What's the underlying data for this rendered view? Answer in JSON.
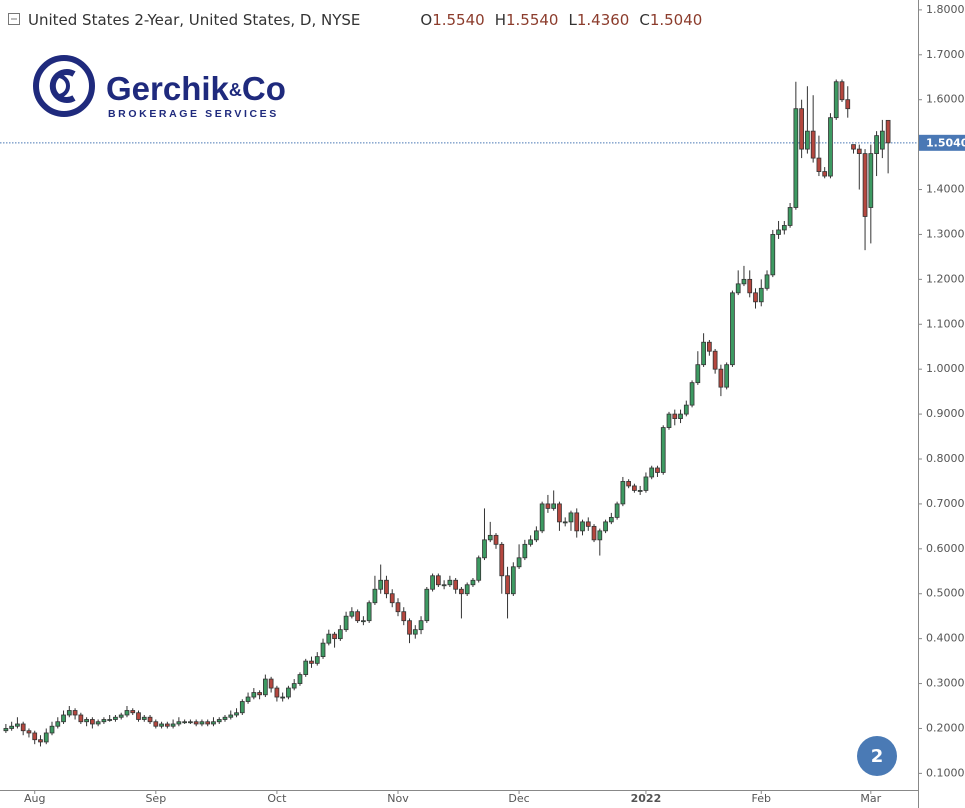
{
  "chart_data": {
    "type": "candlestick",
    "title": "United States 2-Year, United States, D, NYSE",
    "ohlc": [
      {
        "prefix": "O",
        "value": 1.554,
        "label": "1.5540"
      },
      {
        "prefix": "H",
        "value": 1.554,
        "label": "1.5540"
      },
      {
        "prefix": "L",
        "value": 1.436,
        "label": "1.4360"
      },
      {
        "prefix": "C",
        "value": 1.504,
        "label": "1.5040"
      }
    ],
    "categories": [
      null,
      null,
      null,
      null,
      null,
      "Aug",
      null,
      null,
      null,
      null,
      null,
      null,
      null,
      null,
      null,
      null,
      null,
      null,
      null,
      null,
      null,
      null,
      null,
      null,
      null,
      null,
      "Sep",
      null,
      null,
      null,
      null,
      null,
      null,
      null,
      null,
      null,
      null,
      null,
      null,
      null,
      null,
      null,
      null,
      null,
      null,
      null,
      null,
      "Oct",
      null,
      null,
      null,
      null,
      null,
      null,
      null,
      null,
      null,
      null,
      null,
      null,
      null,
      null,
      null,
      null,
      null,
      null,
      null,
      null,
      "Nov",
      null,
      null,
      null,
      null,
      null,
      null,
      null,
      null,
      null,
      null,
      null,
      null,
      null,
      null,
      null,
      null,
      null,
      null,
      null,
      null,
      "Dec",
      null,
      null,
      null,
      null,
      null,
      null,
      null,
      null,
      null,
      null,
      null,
      null,
      null,
      null,
      null,
      null,
      null,
      null,
      null,
      null,
      null,
      "2022",
      null,
      null,
      null,
      null,
      null,
      null,
      null,
      null,
      null,
      null,
      null,
      null,
      null,
      null,
      null,
      null,
      null,
      null,
      null,
      "Feb",
      null,
      null,
      null,
      null,
      null,
      null,
      null,
      null,
      null,
      null,
      null,
      null,
      null,
      null,
      null,
      null,
      null,
      null,
      "Mar",
      null,
      null,
      null
    ],
    "open": [
      0.195,
      0.2,
      0.205,
      0.21,
      0.195,
      0.19,
      0.175,
      0.17,
      0.19,
      0.205,
      0.215,
      0.23,
      0.24,
      0.23,
      0.215,
      0.22,
      0.21,
      0.215,
      0.22,
      0.22,
      0.225,
      0.23,
      0.24,
      0.235,
      0.22,
      0.225,
      0.215,
      0.205,
      0.21,
      0.205,
      0.21,
      0.215,
      0.215,
      0.215,
      0.21,
      0.215,
      0.21,
      0.215,
      0.22,
      0.225,
      0.23,
      0.235,
      0.26,
      0.27,
      0.28,
      0.275,
      0.31,
      0.29,
      0.27,
      0.27,
      0.29,
      0.3,
      0.32,
      0.35,
      0.345,
      0.36,
      0.39,
      0.41,
      0.4,
      0.42,
      0.45,
      0.46,
      0.44,
      0.44,
      0.48,
      0.51,
      0.53,
      0.5,
      0.48,
      0.46,
      0.44,
      0.41,
      0.42,
      0.44,
      0.51,
      0.54,
      0.52,
      0.52,
      0.53,
      0.51,
      0.5,
      0.52,
      0.53,
      0.58,
      0.62,
      0.63,
      0.61,
      0.54,
      0.5,
      0.56,
      0.58,
      0.61,
      0.62,
      0.64,
      0.7,
      0.69,
      0.7,
      0.66,
      0.66,
      0.68,
      0.64,
      0.66,
      0.65,
      0.62,
      0.64,
      0.66,
      0.67,
      0.7,
      0.75,
      0.74,
      0.73,
      0.73,
      0.76,
      0.78,
      0.77,
      0.87,
      0.9,
      0.89,
      0.9,
      0.92,
      0.97,
      1.01,
      1.06,
      1.04,
      1.0,
      0.96,
      1.01,
      1.17,
      1.19,
      1.2,
      1.17,
      1.15,
      1.18,
      1.21,
      1.3,
      1.31,
      1.32,
      1.36,
      1.58,
      1.49,
      1.53,
      1.47,
      1.44,
      1.43,
      1.56,
      1.64,
      1.6,
      1.5,
      1.49,
      1.48,
      1.36,
      1.48,
      1.49,
      1.554
    ],
    "high": [
      0.21,
      0.215,
      0.225,
      0.215,
      0.2,
      0.195,
      0.185,
      0.2,
      0.215,
      0.225,
      0.24,
      0.25,
      0.245,
      0.235,
      0.225,
      0.225,
      0.22,
      0.225,
      0.23,
      0.23,
      0.235,
      0.25,
      0.245,
      0.24,
      0.23,
      0.23,
      0.22,
      0.215,
      0.215,
      0.22,
      0.225,
      0.22,
      0.22,
      0.22,
      0.22,
      0.22,
      0.225,
      0.225,
      0.23,
      0.24,
      0.245,
      0.265,
      0.28,
      0.29,
      0.285,
      0.32,
      0.315,
      0.295,
      0.28,
      0.295,
      0.31,
      0.325,
      0.355,
      0.36,
      0.37,
      0.4,
      0.42,
      0.415,
      0.43,
      0.46,
      0.47,
      0.465,
      0.45,
      0.485,
      0.54,
      0.565,
      0.54,
      0.51,
      0.49,
      0.47,
      0.445,
      0.43,
      0.45,
      0.515,
      0.545,
      0.545,
      0.53,
      0.54,
      0.535,
      0.515,
      0.525,
      0.535,
      0.585,
      0.69,
      0.66,
      0.635,
      0.615,
      0.56,
      0.57,
      0.61,
      0.62,
      0.63,
      0.65,
      0.705,
      0.72,
      0.73,
      0.705,
      0.67,
      0.685,
      0.69,
      0.665,
      0.67,
      0.655,
      0.645,
      0.665,
      0.68,
      0.705,
      0.76,
      0.755,
      0.745,
      0.74,
      0.77,
      0.785,
      0.785,
      0.875,
      0.905,
      0.91,
      0.91,
      0.93,
      0.975,
      1.04,
      1.08,
      1.065,
      1.045,
      1.01,
      1.015,
      1.175,
      1.22,
      1.23,
      1.22,
      1.18,
      1.2,
      1.22,
      1.31,
      1.33,
      1.33,
      1.37,
      1.64,
      1.6,
      1.63,
      1.61,
      1.52,
      1.45,
      1.57,
      1.645,
      1.645,
      1.63,
      1.5,
      1.5,
      1.49,
      1.5,
      1.53,
      1.555,
      1.554
    ],
    "low": [
      0.19,
      0.195,
      0.2,
      0.185,
      0.18,
      0.165,
      0.16,
      0.165,
      0.185,
      0.2,
      0.21,
      0.225,
      0.22,
      0.21,
      0.205,
      0.2,
      0.205,
      0.21,
      0.215,
      0.215,
      0.22,
      0.225,
      0.23,
      0.215,
      0.215,
      0.21,
      0.2,
      0.2,
      0.2,
      0.2,
      0.205,
      0.21,
      0.21,
      0.205,
      0.205,
      0.205,
      0.205,
      0.21,
      0.215,
      0.22,
      0.225,
      0.23,
      0.255,
      0.265,
      0.265,
      0.27,
      0.28,
      0.26,
      0.26,
      0.265,
      0.285,
      0.295,
      0.315,
      0.335,
      0.34,
      0.355,
      0.385,
      0.38,
      0.395,
      0.415,
      0.445,
      0.435,
      0.43,
      0.435,
      0.475,
      0.5,
      0.49,
      0.47,
      0.45,
      0.43,
      0.39,
      0.4,
      0.41,
      0.435,
      0.505,
      0.515,
      0.51,
      0.515,
      0.5,
      0.445,
      0.495,
      0.515,
      0.525,
      0.575,
      0.615,
      0.6,
      0.5,
      0.445,
      0.495,
      0.555,
      0.575,
      0.605,
      0.615,
      0.635,
      0.68,
      0.685,
      0.64,
      0.65,
      0.64,
      0.625,
      0.63,
      0.64,
      0.615,
      0.585,
      0.635,
      0.655,
      0.665,
      0.695,
      0.735,
      0.725,
      0.72,
      0.725,
      0.755,
      0.76,
      0.765,
      0.865,
      0.875,
      0.88,
      0.895,
      0.915,
      0.965,
      1.005,
      1.03,
      0.99,
      0.94,
      0.955,
      1.005,
      1.165,
      1.185,
      1.16,
      1.135,
      1.14,
      1.175,
      1.205,
      1.29,
      1.3,
      1.315,
      1.355,
      1.47,
      1.48,
      1.46,
      1.43,
      1.425,
      1.425,
      1.555,
      1.595,
      1.56,
      1.48,
      1.4,
      1.265,
      1.28,
      1.43,
      1.47,
      1.436
    ],
    "close": [
      0.2,
      0.205,
      0.21,
      0.195,
      0.19,
      0.175,
      0.17,
      0.19,
      0.205,
      0.215,
      0.23,
      0.24,
      0.23,
      0.215,
      0.22,
      0.21,
      0.215,
      0.22,
      0.22,
      0.225,
      0.23,
      0.24,
      0.235,
      0.22,
      0.225,
      0.215,
      0.205,
      0.21,
      0.205,
      0.21,
      0.215,
      0.215,
      0.215,
      0.21,
      0.215,
      0.21,
      0.215,
      0.22,
      0.225,
      0.23,
      0.235,
      0.26,
      0.27,
      0.28,
      0.275,
      0.31,
      0.29,
      0.27,
      0.27,
      0.29,
      0.3,
      0.32,
      0.35,
      0.345,
      0.36,
      0.39,
      0.41,
      0.4,
      0.42,
      0.45,
      0.46,
      0.44,
      0.44,
      0.48,
      0.51,
      0.53,
      0.5,
      0.48,
      0.46,
      0.44,
      0.41,
      0.42,
      0.44,
      0.51,
      0.54,
      0.52,
      0.52,
      0.53,
      0.51,
      0.5,
      0.52,
      0.53,
      0.58,
      0.62,
      0.63,
      0.61,
      0.54,
      0.5,
      0.56,
      0.58,
      0.61,
      0.62,
      0.64,
      0.7,
      0.69,
      0.7,
      0.66,
      0.66,
      0.68,
      0.64,
      0.66,
      0.65,
      0.62,
      0.64,
      0.66,
      0.67,
      0.7,
      0.75,
      0.74,
      0.73,
      0.73,
      0.76,
      0.78,
      0.77,
      0.87,
      0.9,
      0.89,
      0.9,
      0.92,
      0.97,
      1.01,
      1.06,
      1.04,
      1.0,
      0.96,
      1.01,
      1.17,
      1.19,
      1.2,
      1.17,
      1.15,
      1.18,
      1.21,
      1.3,
      1.31,
      1.32,
      1.36,
      1.58,
      1.49,
      1.53,
      1.47,
      1.44,
      1.43,
      1.56,
      1.64,
      1.6,
      1.58,
      1.49,
      1.48,
      1.34,
      1.48,
      1.52,
      1.53,
      1.504
    ],
    "up_color": "#3d9a62",
    "down_color": "#b5473f",
    "ylim": [
      0.063,
      1.822
    ],
    "yticks": [
      {
        "value": 0.1,
        "label": "0.1000"
      },
      {
        "value": 0.2,
        "label": "0.2000"
      },
      {
        "value": 0.3,
        "label": "0.3000"
      },
      {
        "value": 0.4,
        "label": "0.4000"
      },
      {
        "value": 0.5,
        "label": "0.5000"
      },
      {
        "value": 0.6,
        "label": "0.6000"
      },
      {
        "value": 0.7,
        "label": "0.7000"
      },
      {
        "value": 0.8,
        "label": "0.8000"
      },
      {
        "value": 0.9,
        "label": "0.9000"
      },
      {
        "value": 1.0,
        "label": "1.0000"
      },
      {
        "value": 1.1,
        "label": "1.1000"
      },
      {
        "value": 1.2,
        "label": "1.2000"
      },
      {
        "value": 1.3,
        "label": "1.3000"
      },
      {
        "value": 1.4,
        "label": "1.4000"
      },
      {
        "value": 1.5,
        "label": "1.5000"
      },
      {
        "value": 1.6,
        "label": "1.6000"
      },
      {
        "value": 1.7,
        "label": "1.7000"
      },
      {
        "value": 1.8,
        "label": "1.8000"
      }
    ],
    "grid": false,
    "last_price": {
      "value": 1.504,
      "label": "1.5040",
      "color": "#4a78b5"
    }
  },
  "logo": {
    "name": "Gerchik",
    "amp": "&",
    "suffix": "Co",
    "tagline": "BROKERAGE SERVICES"
  },
  "badge": "2"
}
